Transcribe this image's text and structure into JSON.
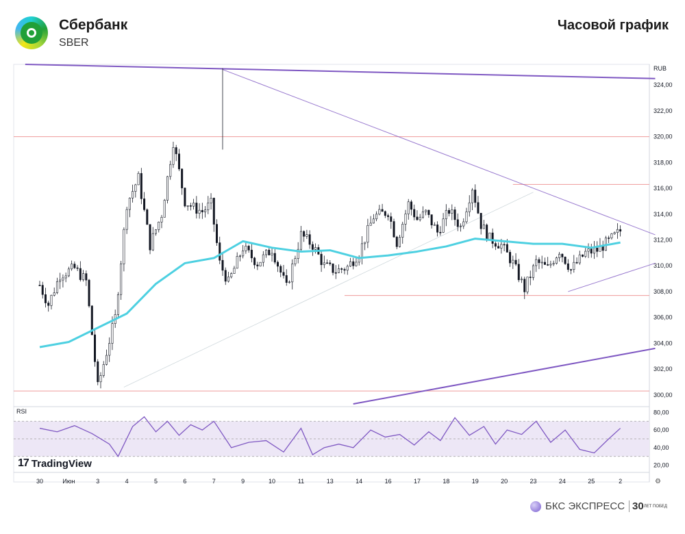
{
  "header": {
    "company": "Сбербанк",
    "ticker": "SBER",
    "timeframe": "Часовой график"
  },
  "watermark": {
    "tv_mark": "17",
    "tv_text": "TradingView"
  },
  "footer": {
    "brand_name": "БКС ЭКСПРЕСС",
    "anniversary_number": "30",
    "anniversary_text": "ЛЕТ ПОБЕД"
  },
  "colors": {
    "candle": "#131722",
    "ma": "#4dd0e1",
    "support_resistance": "#ef9a9a",
    "trend_lines": "#7e57c2",
    "rsi_line": "#7e57c2",
    "rsi_band": "#ede7f6"
  },
  "chart_data": [
    {
      "type": "candlestick",
      "currency_label": "RUB",
      "x_tick_labels": [
        "30",
        "Июн",
        "3",
        "4",
        "5",
        "6",
        "7",
        "9",
        "10",
        "11",
        "13",
        "14",
        "16",
        "17",
        "18",
        "19",
        "20",
        "23",
        "24",
        "25",
        "2"
      ],
      "y_tick_labels": [
        "324,00",
        "322,00",
        "320,00",
        "318,00",
        "316,00",
        "314,00",
        "312,00",
        "310,00",
        "308,00",
        "306,00",
        "304,00",
        "302,00",
        "300,00"
      ],
      "ylim": [
        299.3,
        325.6
      ],
      "horizontal_levels": [
        320.0,
        316.3,
        307.7,
        300.3
      ],
      "moving_average": {
        "x": [
          0,
          1,
          2,
          3,
          4,
          5,
          6,
          7,
          8,
          9,
          10,
          11,
          12,
          13,
          14,
          15,
          16,
          17,
          18,
          19,
          20
        ],
        "values": [
          303.7,
          304.1,
          305.2,
          306.3,
          308.6,
          310.2,
          310.6,
          311.9,
          311.4,
          311.1,
          311.2,
          310.6,
          310.8,
          311.1,
          311.5,
          312.1,
          311.9,
          311.7,
          311.7,
          311.4,
          311.8
        ]
      },
      "price_path": {
        "x": [
          0,
          0.3,
          0.7,
          1.2,
          1.6,
          2.0,
          2.6,
          3.0,
          3.4,
          3.8,
          4.2,
          4.6,
          5.0,
          5.3,
          5.6,
          5.9,
          6.2,
          6.5,
          7.0,
          7.5,
          8.0,
          8.5,
          9.0,
          9.4,
          9.8,
          10.2,
          10.6,
          11.0,
          11.5,
          12.0,
          12.3,
          12.7,
          13.0,
          13.3,
          13.7,
          14.1,
          14.5,
          14.9,
          15.2,
          15.5,
          15.9,
          16.3,
          16.7,
          17.1,
          17.5,
          17.9,
          18.3,
          18.8,
          19.2,
          19.6,
          20.0
        ],
        "values": [
          308.5,
          307.0,
          309.3,
          309.8,
          308.8,
          300.6,
          306.0,
          314.8,
          316.8,
          311.6,
          314.0,
          319.6,
          315.0,
          314.5,
          314.2,
          314.8,
          310.2,
          308.7,
          311.4,
          310.2,
          311.3,
          308.3,
          312.4,
          311.6,
          310.0,
          309.6,
          309.9,
          311.0,
          313.8,
          314.2,
          311.8,
          314.8,
          313.6,
          314.1,
          312.6,
          314.3,
          313.0,
          316.1,
          313.2,
          312.1,
          311.6,
          310.2,
          308.2,
          310.3,
          309.8,
          311.2,
          309.7,
          311.0,
          311.2,
          311.9,
          312.7
        ]
      }
    },
    {
      "type": "line",
      "name": "RSI",
      "y_tick_labels": [
        "80,00",
        "60,00",
        "40,00",
        "20,00"
      ],
      "ylim": [
        15,
        85
      ],
      "band": [
        30,
        70
      ],
      "x": [
        0,
        0.6,
        1.2,
        1.8,
        2.4,
        2.7,
        3.2,
        3.6,
        4.0,
        4.4,
        4.8,
        5.2,
        5.6,
        6.0,
        6.6,
        7.2,
        7.8,
        8.4,
        9.0,
        9.4,
        9.8,
        10.3,
        10.8,
        11.4,
        11.9,
        12.4,
        12.9,
        13.4,
        13.8,
        14.3,
        14.8,
        15.3,
        15.7,
        16.1,
        16.6,
        17.1,
        17.6,
        18.1,
        18.6,
        19.1,
        19.6,
        20.0
      ],
      "values": [
        62,
        58,
        65,
        56,
        44,
        30,
        64,
        75,
        58,
        70,
        54,
        66,
        60,
        70,
        40,
        46,
        48,
        35,
        62,
        32,
        40,
        44,
        40,
        60,
        52,
        55,
        43,
        58,
        48,
        74,
        54,
        64,
        44,
        60,
        55,
        70,
        46,
        60,
        38,
        34,
        50,
        62
      ]
    }
  ]
}
